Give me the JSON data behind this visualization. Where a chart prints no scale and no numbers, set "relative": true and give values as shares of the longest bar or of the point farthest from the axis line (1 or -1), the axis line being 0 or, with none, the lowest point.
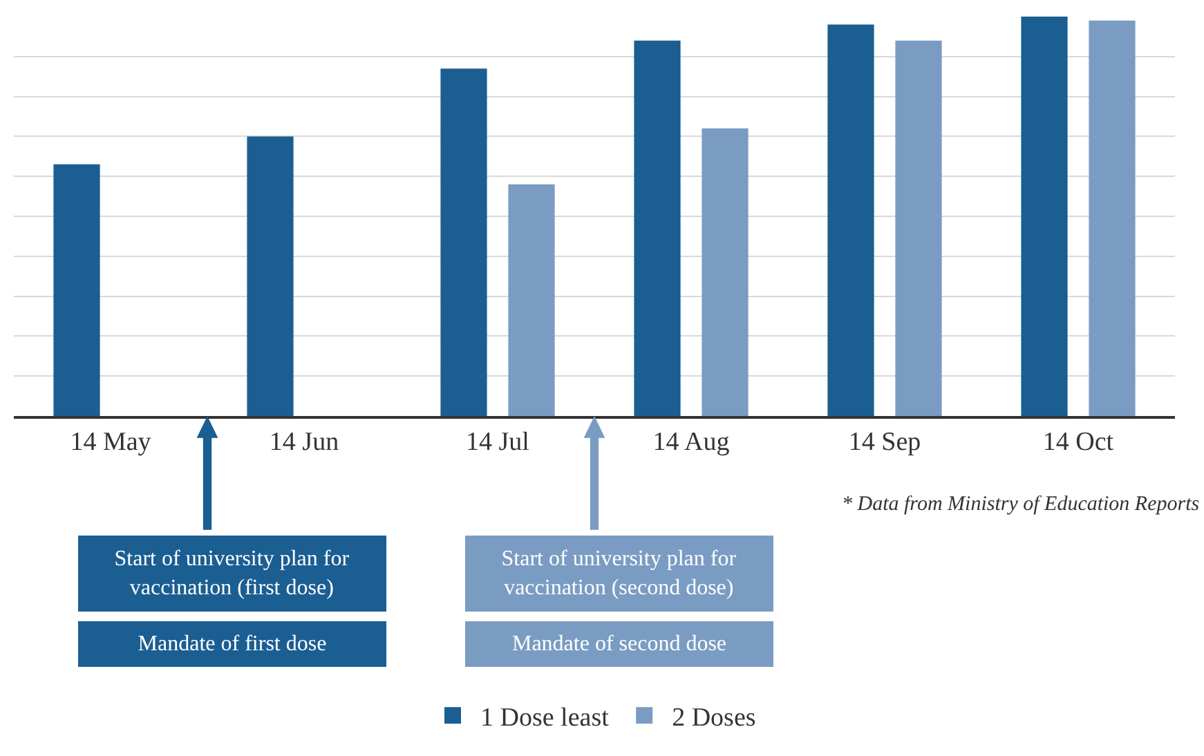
{
  "chart_data": {
    "type": "bar",
    "relative": true,
    "categories": [
      "14 May",
      "14 Jun",
      "14 Jul",
      "14 Aug",
      "14 Sep",
      "14 Oct"
    ],
    "series": [
      {
        "name": "1 Dose least",
        "color": "#1b5e92",
        "values": [
          0.63,
          0.7,
          0.87,
          0.94,
          0.98,
          1.0
        ]
      },
      {
        "name": "2 Doses",
        "color": "#7a9cc3",
        "values": [
          null,
          null,
          0.58,
          0.72,
          0.94,
          0.99
        ]
      }
    ],
    "annotations": [
      "Start of university plan for vaccination (first dose)",
      "Mandate of first dose",
      "Start of university plan for vaccination (second dose)",
      "Mandate of second dose",
      "* Data from Ministry of Education Reports"
    ],
    "grid": "y",
    "legend": "bottom"
  }
}
